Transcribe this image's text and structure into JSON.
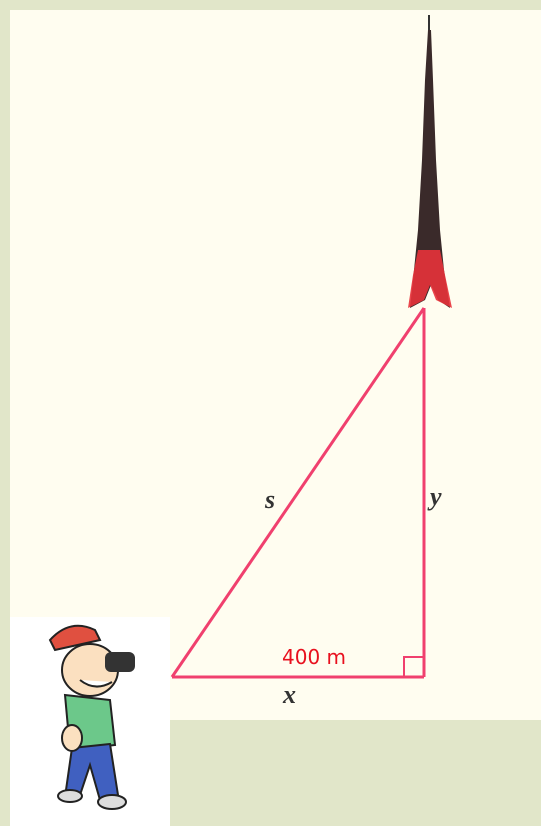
{
  "labels": {
    "hypotenuse": "s",
    "height": "y",
    "base": "x",
    "distance": "400 m"
  }
}
